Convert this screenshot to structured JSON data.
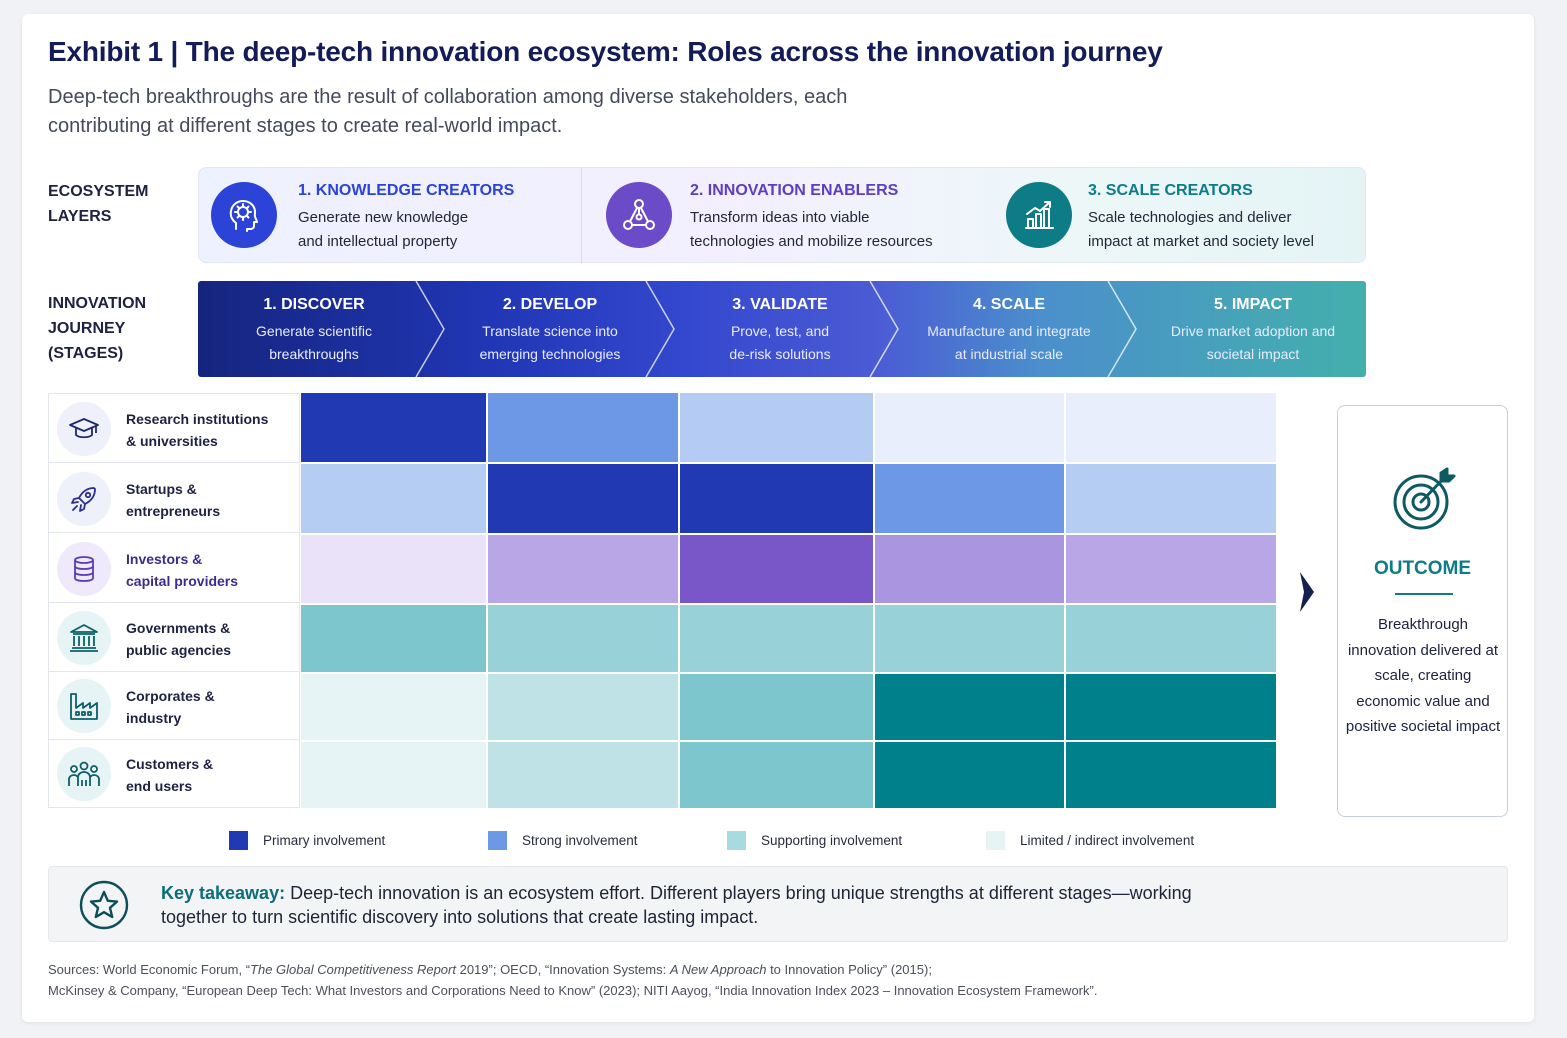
{
  "title": "Exhibit 1 | The deep-tech innovation ecosystem: Roles across the innovation journey",
  "subtitle": "Deep-tech breakthroughs are the result of collaboration among diverse stakeholders, each contributing at different stages to create real-world impact.",
  "layers_label": [
    "ECOSYSTEM",
    "LAYERS"
  ],
  "journey_label": [
    "INNOVATION",
    "JOURNEY",
    "(STAGES)"
  ],
  "layers": [
    {
      "title": "1. KNOWLEDGE CREATORS",
      "desc_lines": [
        "Generate new knowledge",
        "and intellectual property"
      ],
      "icon": "head-idea-icon",
      "color": "#2b43d6"
    },
    {
      "title": "2. INNOVATION ENABLERS",
      "desc_lines": [
        "Transform ideas into viable",
        "technologies and mobilize resources"
      ],
      "icon": "network-icon",
      "color": "#6b4bc7"
    },
    {
      "title": "3. SCALE CREATORS",
      "desc_lines": [
        "Scale technologies and deliver",
        "impact at market and society level"
      ],
      "icon": "growth-chart-icon",
      "color": "#0d7c86"
    }
  ],
  "stages": [
    {
      "title": "1. DISCOVER",
      "desc_lines": [
        "Generate scientific",
        "breakthroughs"
      ],
      "color": "#172a8c"
    },
    {
      "title": "2. DEVELOP",
      "desc_lines": [
        "Translate science into",
        "emerging technologies"
      ],
      "color": "#2540c4"
    },
    {
      "title": "3. VALIDATE",
      "desc_lines": [
        "Prove, test, and",
        "de-risk solutions"
      ],
      "color": "#4754d1"
    },
    {
      "title": "4. SCALE",
      "desc_lines": [
        "Manufacture and integrate",
        "at industrial scale"
      ],
      "color": "#4f8fcb"
    },
    {
      "title": "5. IMPACT",
      "desc_lines": [
        "Drive market adoption and",
        "societal impact"
      ],
      "color": "#3fa7ae"
    }
  ],
  "stakeholders": [
    {
      "label_lines": [
        "Research institutions",
        "& universities"
      ],
      "icon": "graduation-cap-icon",
      "accent": "#eef0fa",
      "level_colors": [
        "#2239b4",
        "#6d98e6",
        "#b4ccf3",
        "#e8eefb",
        "#e8eefb"
      ]
    },
    {
      "label_lines": [
        "Startups &",
        "entrepreneurs"
      ],
      "icon": "rocket-icon",
      "accent": "#eef0fa",
      "level_colors": [
        "#b5cdf3",
        "#2239b4",
        "#2239b4",
        "#6d98e6",
        "#b5cdf3"
      ]
    },
    {
      "label_lines": [
        "Investors &",
        "capital providers"
      ],
      "icon": "coins-stack-icon",
      "accent": "#efeafb",
      "level_colors": [
        "#e9e2f8",
        "#b9a6e6",
        "#7a57c8",
        "#a995e0",
        "#b9a6e6"
      ]
    },
    {
      "label_lines": [
        "Governments &",
        "public agencies"
      ],
      "icon": "government-building-icon",
      "accent": "#e6f4f5",
      "level_colors": [
        "#7ec6cd",
        "#98d2d8",
        "#98d2d8",
        "#98d2d8",
        "#98d2d8"
      ]
    },
    {
      "label_lines": [
        "Corporates &",
        "industry"
      ],
      "icon": "factory-icon",
      "accent": "#e6f4f5",
      "level_colors": [
        "#e7f4f5",
        "#bfe2e6",
        "#7ec6cd",
        "#00808a",
        "#00808a"
      ]
    },
    {
      "label_lines": [
        "Customers &",
        "end users"
      ],
      "icon": "people-group-icon",
      "accent": "#e6f4f5",
      "level_colors": [
        "#e7f4f5",
        "#bfe2e6",
        "#7ec6cd",
        "#00808a",
        "#00808a"
      ]
    }
  ],
  "outcome": {
    "title": "OUTCOME",
    "text": "Breakthrough innovation delivered at scale, creating economic value and positive societal impact",
    "icon": "target-icon"
  },
  "legend": [
    {
      "label": "Primary involvement",
      "color": "#2239b4"
    },
    {
      "label": "Strong involvement",
      "color": "#6d98e6"
    },
    {
      "label": "Supporting involvement",
      "color": "#a8dbe0"
    },
    {
      "label": "Limited / indirect involvement",
      "color": "#e7f4f5"
    }
  ],
  "takeaway": {
    "label": "Key takeaway:",
    "text": "Deep-tech innovation is an ecosystem effort. Different players bring unique strengths at different stages—working together to turn scientific discovery into solutions that create lasting impact.",
    "icon": "star-icon"
  },
  "sources": {
    "line1": [
      "Sources: World Economic Forum, “",
      "The Global Competitiveness Report",
      " 2019”; OECD, “Innovation Systems: ",
      "A New Approach",
      " to Innovation Policy” (2015);"
    ],
    "line2": "McKinsey & Company, “European Deep Tech: What Investors and Corporations Need to Know” (2023); NITI Aayog, “India Innovation Index 2023 – Innovation Ecosystem Framework”."
  }
}
